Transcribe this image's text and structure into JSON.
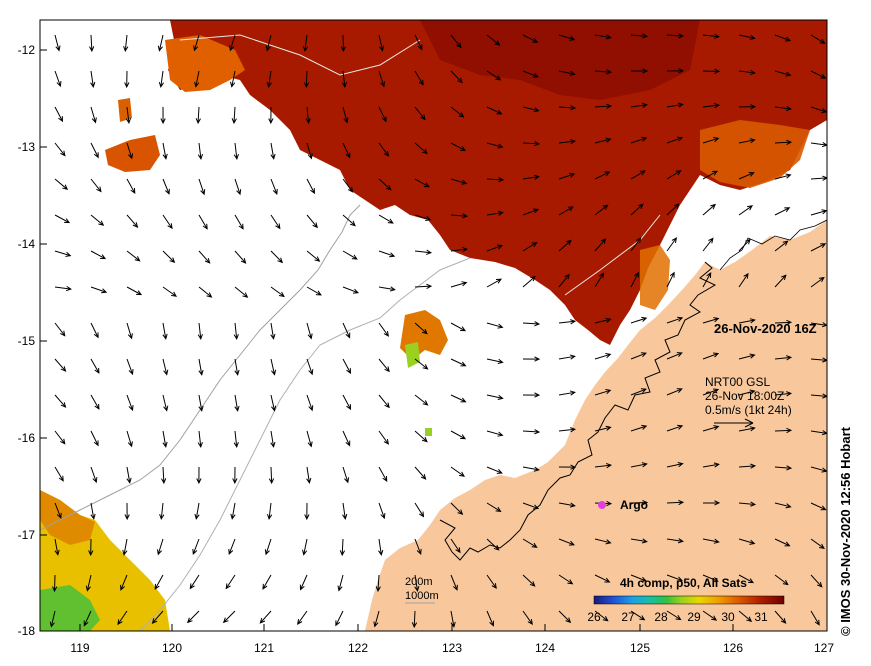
{
  "map": {
    "composite_date": "26-Nov-2020 16Z",
    "current_source": "NRT00 GSL",
    "current_time": "26-Nov 18:00Z",
    "current_scale": "0.5m/s (1kt 24h)",
    "argo_label": "Argo",
    "isobath_200": "200m",
    "isobath_1000": "1000m",
    "colorbar_title": "4h comp, p50, All Sats",
    "colorbar_ticks": [
      "26",
      "27",
      "28",
      "29",
      "30",
      "31"
    ],
    "credit": "© IMOS 30-Nov-2020 12:56 Hobart",
    "lon_ticks": [
      "119",
      "120",
      "121",
      "122",
      "123",
      "124",
      "125",
      "126",
      "127"
    ],
    "lat_ticks": [
      "-12",
      "-13",
      "-14",
      "-15",
      "-16",
      "-17",
      "-18"
    ],
    "lon_range": [
      118.6,
      127
    ],
    "lat_range": [
      -18,
      -11.75
    ],
    "colors": {
      "land": "#f8c89c",
      "sst_hot": "#a01800",
      "sst_mid": "#c83c00",
      "sst_warm": "#e07000",
      "sst_cool": "#f0c000",
      "argo": "#e040e0"
    },
    "colorbar_colors": [
      "#1a1a7a",
      "#1f4fd8",
      "#1aa0e8",
      "#18c0a0",
      "#30c040",
      "#90d020",
      "#e8d800",
      "#f0a000",
      "#e06000",
      "#b02000",
      "#700000"
    ]
  }
}
